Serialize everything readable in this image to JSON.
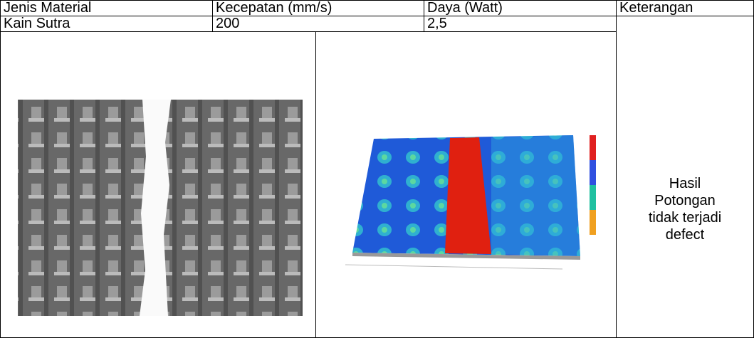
{
  "table": {
    "header": [
      "Jenis Material",
      "Kecepatan (mm/s)",
      "Daya (Watt)",
      "Keterangan"
    ],
    "rows": [
      [
        "Kain Sutra",
        "200",
        "2,5",
        [
          "Hasil",
          "Potongan",
          "tidak terjadi",
          "defect"
        ]
      ]
    ]
  }
}
